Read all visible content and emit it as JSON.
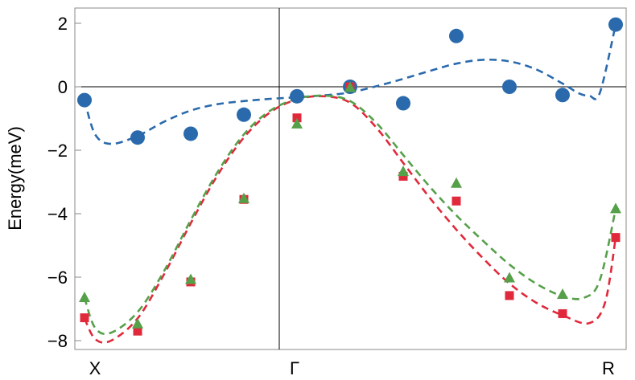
{
  "chart_data": {
    "type": "scatter",
    "title": "",
    "xlabel": "",
    "ylabel": "Energy(meV)",
    "x_ticks": [
      "X",
      "Γ",
      "R"
    ],
    "y_ticks": [
      "2",
      "0",
      "−2",
      "−4",
      "−6",
      "−8"
    ],
    "ylim": [
      -8.3,
      2.5
    ],
    "x_positions": [
      -5,
      -4,
      -3,
      -2,
      -1,
      0,
      1,
      2,
      3,
      4,
      5
    ],
    "grid": false,
    "legend": "none",
    "series": [
      {
        "color": "#2a6aac",
        "marker": "circle",
        "points": [
          -0.42,
          -1.6,
          -1.48,
          -0.88,
          -0.3,
          0.0,
          -0.52,
          1.6,
          0.0,
          -0.26,
          1.96
        ],
        "fit": [
          [
            -5,
            -0.42
          ],
          [
            -4.8,
            -1.5
          ],
          [
            -4.5,
            -1.8
          ],
          [
            -4.0,
            -1.55
          ],
          [
            -3.5,
            -1.1
          ],
          [
            -3.0,
            -0.75
          ],
          [
            -2.5,
            -0.55
          ],
          [
            -2.0,
            -0.45
          ],
          [
            -1.5,
            -0.38
          ],
          [
            -1.0,
            -0.33
          ],
          [
            -0.5,
            -0.27
          ],
          [
            0.0,
            -0.18
          ],
          [
            0.5,
            0.02
          ],
          [
            1.0,
            0.25
          ],
          [
            1.5,
            0.5
          ],
          [
            2.0,
            0.73
          ],
          [
            2.5,
            0.85
          ],
          [
            3.0,
            0.8
          ],
          [
            3.5,
            0.55
          ],
          [
            4.0,
            0.1
          ],
          [
            4.3,
            -0.2
          ],
          [
            4.5,
            -0.28
          ],
          [
            4.7,
            -0.2
          ],
          [
            5.0,
            1.96
          ]
        ]
      },
      {
        "color": "#e0293b",
        "marker": "square",
        "points": [
          -7.28,
          -7.7,
          -6.15,
          -3.55,
          -0.98,
          0.0,
          -2.82,
          -3.6,
          -6.58,
          -7.15,
          -4.75
        ],
        "fit": [
          [
            -5,
            -7.3
          ],
          [
            -4.8,
            -7.95
          ],
          [
            -4.5,
            -8.0
          ],
          [
            -4.0,
            -7.3
          ],
          [
            -3.5,
            -5.9
          ],
          [
            -3.0,
            -4.3
          ],
          [
            -2.5,
            -2.8
          ],
          [
            -2.0,
            -1.6
          ],
          [
            -1.5,
            -0.8
          ],
          [
            -1.0,
            -0.4
          ],
          [
            -0.5,
            -0.3
          ],
          [
            0.0,
            -0.5
          ],
          [
            0.5,
            -1.3
          ],
          [
            1.0,
            -2.4
          ],
          [
            1.5,
            -3.5
          ],
          [
            2.0,
            -4.5
          ],
          [
            2.5,
            -5.4
          ],
          [
            3.0,
            -6.2
          ],
          [
            3.5,
            -6.8
          ],
          [
            4.0,
            -7.2
          ],
          [
            4.5,
            -7.45
          ],
          [
            4.8,
            -6.8
          ],
          [
            5.0,
            -4.75
          ]
        ]
      },
      {
        "color": "#56a04a",
        "marker": "triangle",
        "points": [
          -6.62,
          -7.45,
          -6.05,
          -3.5,
          -1.15,
          0.0,
          -2.65,
          -3.02,
          -6.0,
          -6.52,
          -3.82
        ],
        "fit": [
          [
            -5,
            -6.65
          ],
          [
            -4.8,
            -7.6
          ],
          [
            -4.5,
            -7.75
          ],
          [
            -4.0,
            -7.1
          ],
          [
            -3.5,
            -5.8
          ],
          [
            -3.0,
            -4.2
          ],
          [
            -2.5,
            -2.7
          ],
          [
            -2.0,
            -1.5
          ],
          [
            -1.5,
            -0.75
          ],
          [
            -1.0,
            -0.38
          ],
          [
            -0.5,
            -0.28
          ],
          [
            0.0,
            -0.45
          ],
          [
            0.5,
            -1.15
          ],
          [
            1.0,
            -2.15
          ],
          [
            1.5,
            -3.15
          ],
          [
            2.0,
            -4.05
          ],
          [
            2.5,
            -4.85
          ],
          [
            3.0,
            -5.6
          ],
          [
            3.5,
            -6.2
          ],
          [
            4.0,
            -6.6
          ],
          [
            4.4,
            -6.65
          ],
          [
            4.7,
            -6.1
          ],
          [
            5.0,
            -3.85
          ]
        ]
      }
    ]
  }
}
